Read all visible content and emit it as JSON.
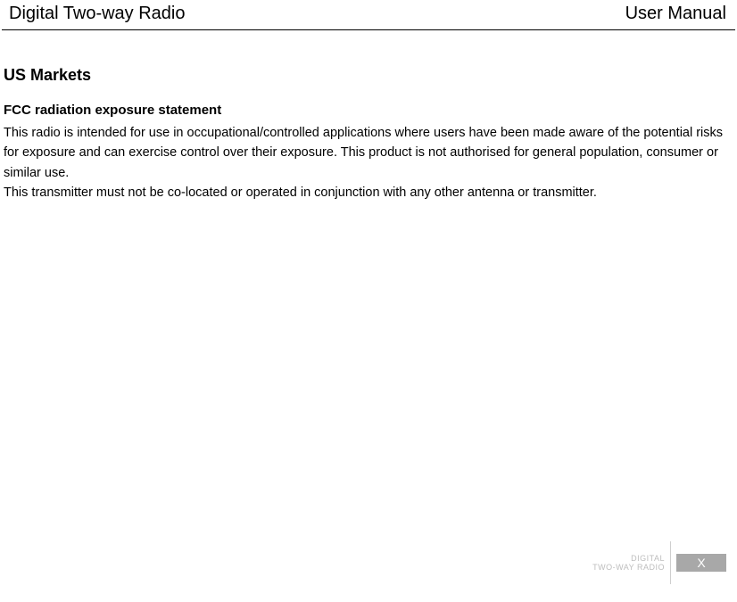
{
  "header": {
    "left": "Digital Two-way Radio",
    "right": "User Manual"
  },
  "section": {
    "title": "US Markets",
    "subtitle": "FCC radiation exposure statement",
    "paragraph1": "This radio is intended for use in occupational/controlled applications where users have been made aware of the potential risks for exposure and can exercise control over their exposure. This product is not authorised for general population, consumer or similar use.",
    "paragraph2": "This transmitter must not be co-located or operated in conjunction with any other antenna or transmitter."
  },
  "footer": {
    "line1": "DIGITAL",
    "line2": "TWO-WAY RADIO",
    "page": "X"
  },
  "colors": {
    "text": "#000000",
    "background": "#ffffff",
    "footer_gray": "#bdbdbd",
    "badge_bg": "#a8a8a8",
    "badge_text": "#ffffff",
    "sep": "#cfcfcf"
  }
}
